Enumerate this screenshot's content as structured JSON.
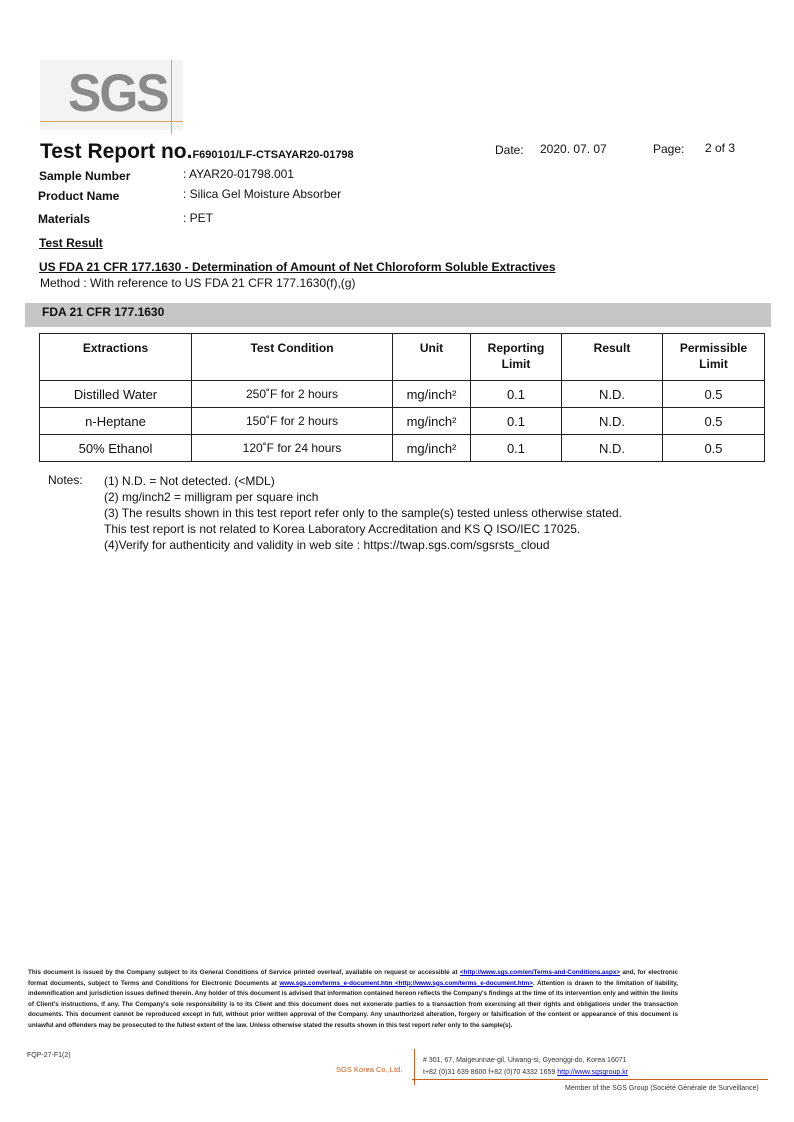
{
  "logo": {
    "text": "SGS",
    "accent": "#e0a05a"
  },
  "header": {
    "title": "Test Report no.",
    "report_no": "F690101/LF-CTSAYAR20-01798",
    "date_label": "Date:",
    "date": "2020. 07. 07",
    "page_label": "Page:",
    "page": "2 of 3"
  },
  "fields": [
    {
      "label": "Sample Number",
      "value": "AYAR20-01798.001"
    },
    {
      "label": "Product Name",
      "value": "Silica Gel Moisture Absorber"
    },
    {
      "label": "Materials",
      "value": "PET"
    }
  ],
  "test_result": "Test Result",
  "section_title": "US FDA 21 CFR 177.1630 - Determination of Amount of Net Chloroform Soluble Extractives",
  "method": "Method : With reference to US FDA 21 CFR 177.1630(f),(g)",
  "band_title": "FDA 21 CFR 177.1630",
  "table": {
    "headers": [
      "Extractions",
      "Test Condition",
      "Unit",
      "Reporting Limit",
      "Result",
      "Permissible Limit"
    ],
    "rows": [
      [
        "Distilled Water",
        "250˚F for 2 hours",
        "mg/inch²",
        "0.1",
        "N.D.",
        "0.5"
      ],
      [
        "n-Heptane",
        "150˚F for 2 hours",
        "mg/inch²",
        "0.1",
        "N.D.",
        "0.5"
      ],
      [
        "50% Ethanol",
        "120˚F for 24 hours",
        "mg/inch²",
        "0.1",
        "N.D.",
        "0.5"
      ]
    ]
  },
  "notes": {
    "label": "Notes:",
    "lines": [
      "(1) N.D. = Not detected. (<MDL)",
      "(2) mg/inch2  = milligram per square inch",
      "(3) The results shown in this test report refer only to the sample(s) tested unless otherwise stated.",
      "This test report is not related to Korea Laboratory Accreditation and KS Q ISO/IEC 17025.",
      "(4)Verify for authenticity and validity in web site : https://twap.sgs.com/sgsrsts_cloud"
    ]
  },
  "disclaimer": {
    "p1": "This document is issued by the Company subject to its General Conditions of Service printed overleaf, available on request or accessible at ",
    "link1": "<http://www.sgs.com/en/Terms-and-Conditions.aspx>",
    "p2": " and, for electronic format documents, subject to Terms and Conditions for Electronic Documents at ",
    "link2": "www.sgs.com/terms_e-document.htm <http://www.sgs.com/terms_e-document.htm>",
    "p3": ". Attention is drawn to the limitation of liability, indemnification and jurisdiction issues defined therein. Any holder of this document is advised that information contained hereon reflects the Company's findings at the time of its intervention only and within the limits of Client's instructions, if any. The Company's sole responsibility is to its Client and this document does not exonerate parties to a transaction from exercising all their rights and obligations under the transaction documents. This document cannot be reproduced except in full, without prior written approval of the Company. Any unauthorized alteration, forgery or falsification of the content or appearance of this document is unlawful and offenders may be prosecuted to the fullest extent of the law.  Unless otherwise stated the results shown in this test report refer only to the sample(s)."
  },
  "footer": {
    "form": "FQP-27-F1(2)",
    "company": "SGS Korea Co.,Ltd.",
    "address": "# 301, 67, Maigeunnae-gil, Uiwang-si, Gyeonggi-do, Korea 16071",
    "phone": "t+82 (0)31 639 8600 f+82 (0)70 4332 1659 ",
    "website": "http://www.sgsgroup.kr",
    "member": "Member of the SGS Group (Société Générale de Surveillance)",
    "accent": "#c8601e"
  }
}
